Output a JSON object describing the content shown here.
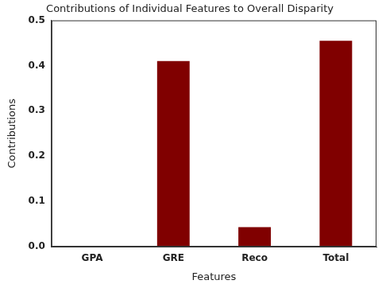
{
  "chart_data": {
    "type": "bar",
    "title": "Contributions of Individual Features to Overall Disparity",
    "x_label": "Features",
    "y_label": "Contributions",
    "categories": [
      "GPA",
      "GRE",
      "Reco",
      "Total"
    ],
    "values": [
      0,
      0.41,
      0.043,
      0.455
    ],
    "color": "#800000",
    "ylim": [
      0,
      0.5
    ],
    "yticks": [
      {
        "value": 0,
        "label": "0.0"
      },
      0.1,
      0.2,
      0.3,
      0.4,
      0.5
    ],
    "grid": false
  }
}
